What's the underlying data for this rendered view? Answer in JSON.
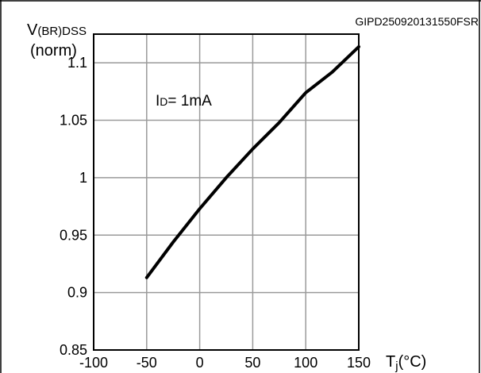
{
  "figure_id": "GIPD250920131550FSR",
  "chart_data": {
    "type": "line",
    "ylabel_main": "V",
    "ylabel_sub": "(BR)DSS",
    "ylabel_norm": "(norm)",
    "xlabel_main": "T",
    "xlabel_sub": "j",
    "xlabel_unit": "(°C)",
    "annotation_main": "I",
    "annotation_sub": "D",
    "annotation_value": "= 1mA",
    "xlim": [
      -100,
      150
    ],
    "ylim": [
      0.85,
      1.125
    ],
    "x_ticks": [
      -100,
      -50,
      0,
      50,
      100,
      150
    ],
    "x_tick_labels": [
      "-100",
      "-50",
      "0",
      "50",
      "100",
      "150"
    ],
    "y_ticks": [
      0.85,
      0.9,
      0.95,
      1,
      1.05,
      1.1
    ],
    "y_tick_labels": [
      "0.85",
      "0.9",
      "0.95",
      "1",
      "1.05",
      "1.1"
    ],
    "grid": true,
    "series": [
      {
        "x": [
          -50,
          -25,
          0,
          25,
          50,
          75,
          100,
          125,
          150
        ],
        "y": [
          0.913,
          0.944,
          0.973,
          1.0,
          1.025,
          1.048,
          1.074,
          1.092,
          1.114
        ]
      }
    ],
    "color": "#000000"
  }
}
